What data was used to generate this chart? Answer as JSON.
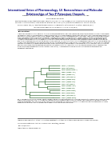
{
  "title": "International Union of Pharmacology. LV. Nomenclature and Molecular\nRelationships of Two-P Potassium Channels",
  "authors_line1": "STEPHEN A. N. GOLDSTEIN, DEBORAH A. BAYLISS, DONGHEE KIM, FLORIAN LESAGE, LEIGH D. PLANT, AND",
  "authors_line2": "SYLVAIN BHLEY GUAIGUAUL",
  "affil1": "Department of Molecular and Integrative Physiology, University of Michigan, Ann Arbor, Michigan (S.A.N.G.); Department of Cell Biology and",
  "affil2": "Physiology, University of Pittsburgh School of Medicine, Pittsburgh, Pennsylvania (D.A.B.); Department of Pharmacology, University of Naples",
  "affil3": "Federico II, Naples, Italy (L.L.); Department of Molecular Biology and Biochemistry, Rutgers University, Piscataway, New Jersey (D.K.);",
  "affil4": "Institut de Pharmacologie Moleculaire et Cellulaire, Valbonne, France (S.B.G.)",
  "section_title": "Introduction",
  "intro_text": "In less than a decade since their discovery, the family of K2P channels that are called background leak conductance channels has grown to encompass 15 members in humans and comparable numbers in many other species. Remarkable for their diversity, with no two family members showing identical amino acid sequence properties, K2P channels display a high degree of structural heterogeneity among members, likely contributing to their unusually diverse physiological and pharmacological properties. Although the first member of the family was cloned in 1995 by Lesage and collaborators, they remained largely orphaned channels for more than a decade. Most members of the family were named at the time of their initial description, which included the use of abbreviations of proposed functional properties or species of origin, and many have subsequently been classified into subfamilies with two proposed taxonomy systems that are markedly different (Fig. 1). Here, the first K2P channels analyzed by bioinformatics approaches along lines for the naming with those of the mammalian genome project to provide a coherent nomenclature and functional classification of all relevant parameters, and then discussed with the general guidelines of employing a uniform nomenclature system for ion channel subunits in mammals. This change in the way in which we understand the relationships of potassium in general and to the classification of K2P mammalian channels (of which genes or their products may have changed names in the updated nomenclature). All K2P genes are the products of at least five subfamilies based on their phylogenetic relationships.",
  "fig_caption": "FIG. 1. Phylogenetic tree for K2P channels. Unrooted neighbor-joining phylogenetic analysis for the C-terminal domains of the channel (C-family) as we generated a description for Superfamily. The \"IUP\" Nomenclature and Molecular Relationships of Two-P Potassium Channels. This is now applied to phylogenetic analysis using tree methodology; the nomenclature of the updated subfamilies and family members is in boldface. The original molecular terminology and HUGO Gene Nomenclature Committee names for the genes are in regular text with the chromosome locations.",
  "footer1": "Address correspondence to: Dr. Steven A. N. Goldstein, Departments of Anatomy and Anatomy for Molecular Medicine Science, Rm 4024 MSII,",
  "footer2": "1150 W. Medical Center Drive, Ann Arbor, MI 48109. E-mail: sgoldstein@umich.edu",
  "footer3": "doi:10.1124/pr.57.4.9.",
  "footer4": "Abbreviations: K2P, two-pore domain K+.",
  "background_color": "#ffffff",
  "title_color": "#1a1a8c",
  "text_color": "#000000",
  "tree_color": "#3a6e3a",
  "tree_labels": [
    "TRAAK (human 6p21)",
    "TRAAK (rat chrom 4)",
    "TRAAK (mouse chrom 17)",
    "TREK-2 (human 14q32)",
    "TREK-1 (human 8q13)",
    "TREK-1 (rat chrom 17)",
    "TASK-3 (human 8q24)",
    "TASK-1 (human 6p21)",
    "TASK-1 (rat chrom 4)",
    "TWIK-2 (human 11q13)",
    "TWIK-1 (human 1q42)",
    "THIK-2 (human 14q32)",
    "THIK-1 (human 8q13)",
    "TREK-1 (rat chrom 17)",
    "TASK-5 (human 20q13)"
  ],
  "title_fontsize": 2.2,
  "author_fontsize": 1.2,
  "affil_fontsize": 1.0,
  "body_fontsize": 1.05,
  "tree_label_fontsize": 1.0,
  "caption_fontsize": 0.95,
  "footer_fontsize": 0.95,
  "section_fontsize": 1.5
}
